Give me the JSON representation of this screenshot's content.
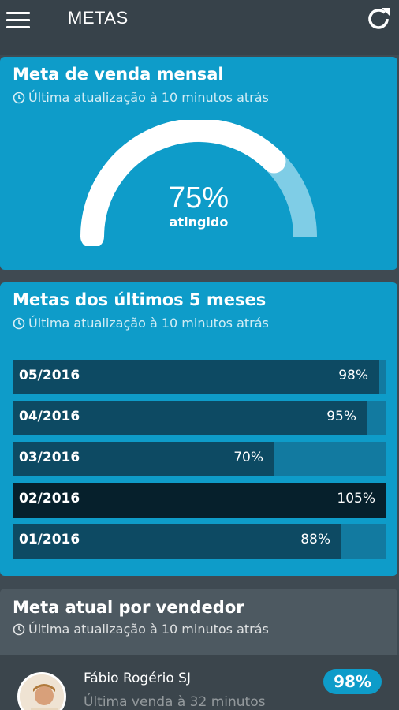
{
  "app": {
    "title": "METAS"
  },
  "icons": {
    "menu": "menu-icon",
    "refresh": "refresh-icon",
    "clock": "clock-icon"
  },
  "colors": {
    "accent": "#0e9cc9",
    "bar_fill": "#0d4a63",
    "bar_over": "#06202c",
    "bar_track": "#127aa0"
  },
  "gauge_card": {
    "title": "Meta de venda mensal",
    "updated": "Última atualização à 10 minutos atrás",
    "percent_text": "75%",
    "percent_value": 75,
    "label": "atingido"
  },
  "months_card": {
    "title": "Metas dos últimos 5 meses",
    "updated": "Última atualização à 10 minutos atrás",
    "rows": [
      {
        "label": "05/2016",
        "value_text": "98%",
        "value": 98
      },
      {
        "label": "04/2016",
        "value_text": "95%",
        "value": 95
      },
      {
        "label": "03/2016",
        "value_text": "70%",
        "value": 70
      },
      {
        "label": "02/2016",
        "value_text": "105%",
        "value": 105
      },
      {
        "label": "01/2016",
        "value_text": "88%",
        "value": 88
      }
    ]
  },
  "sellers_card": {
    "title": "Meta atual por vendedor",
    "updated": "Última atualização à 10 minutos atrás",
    "items": [
      {
        "name": "Fábio Rogério SJ",
        "last_sale": "Última venda à 32 minutos",
        "badge": "98%"
      }
    ]
  }
}
